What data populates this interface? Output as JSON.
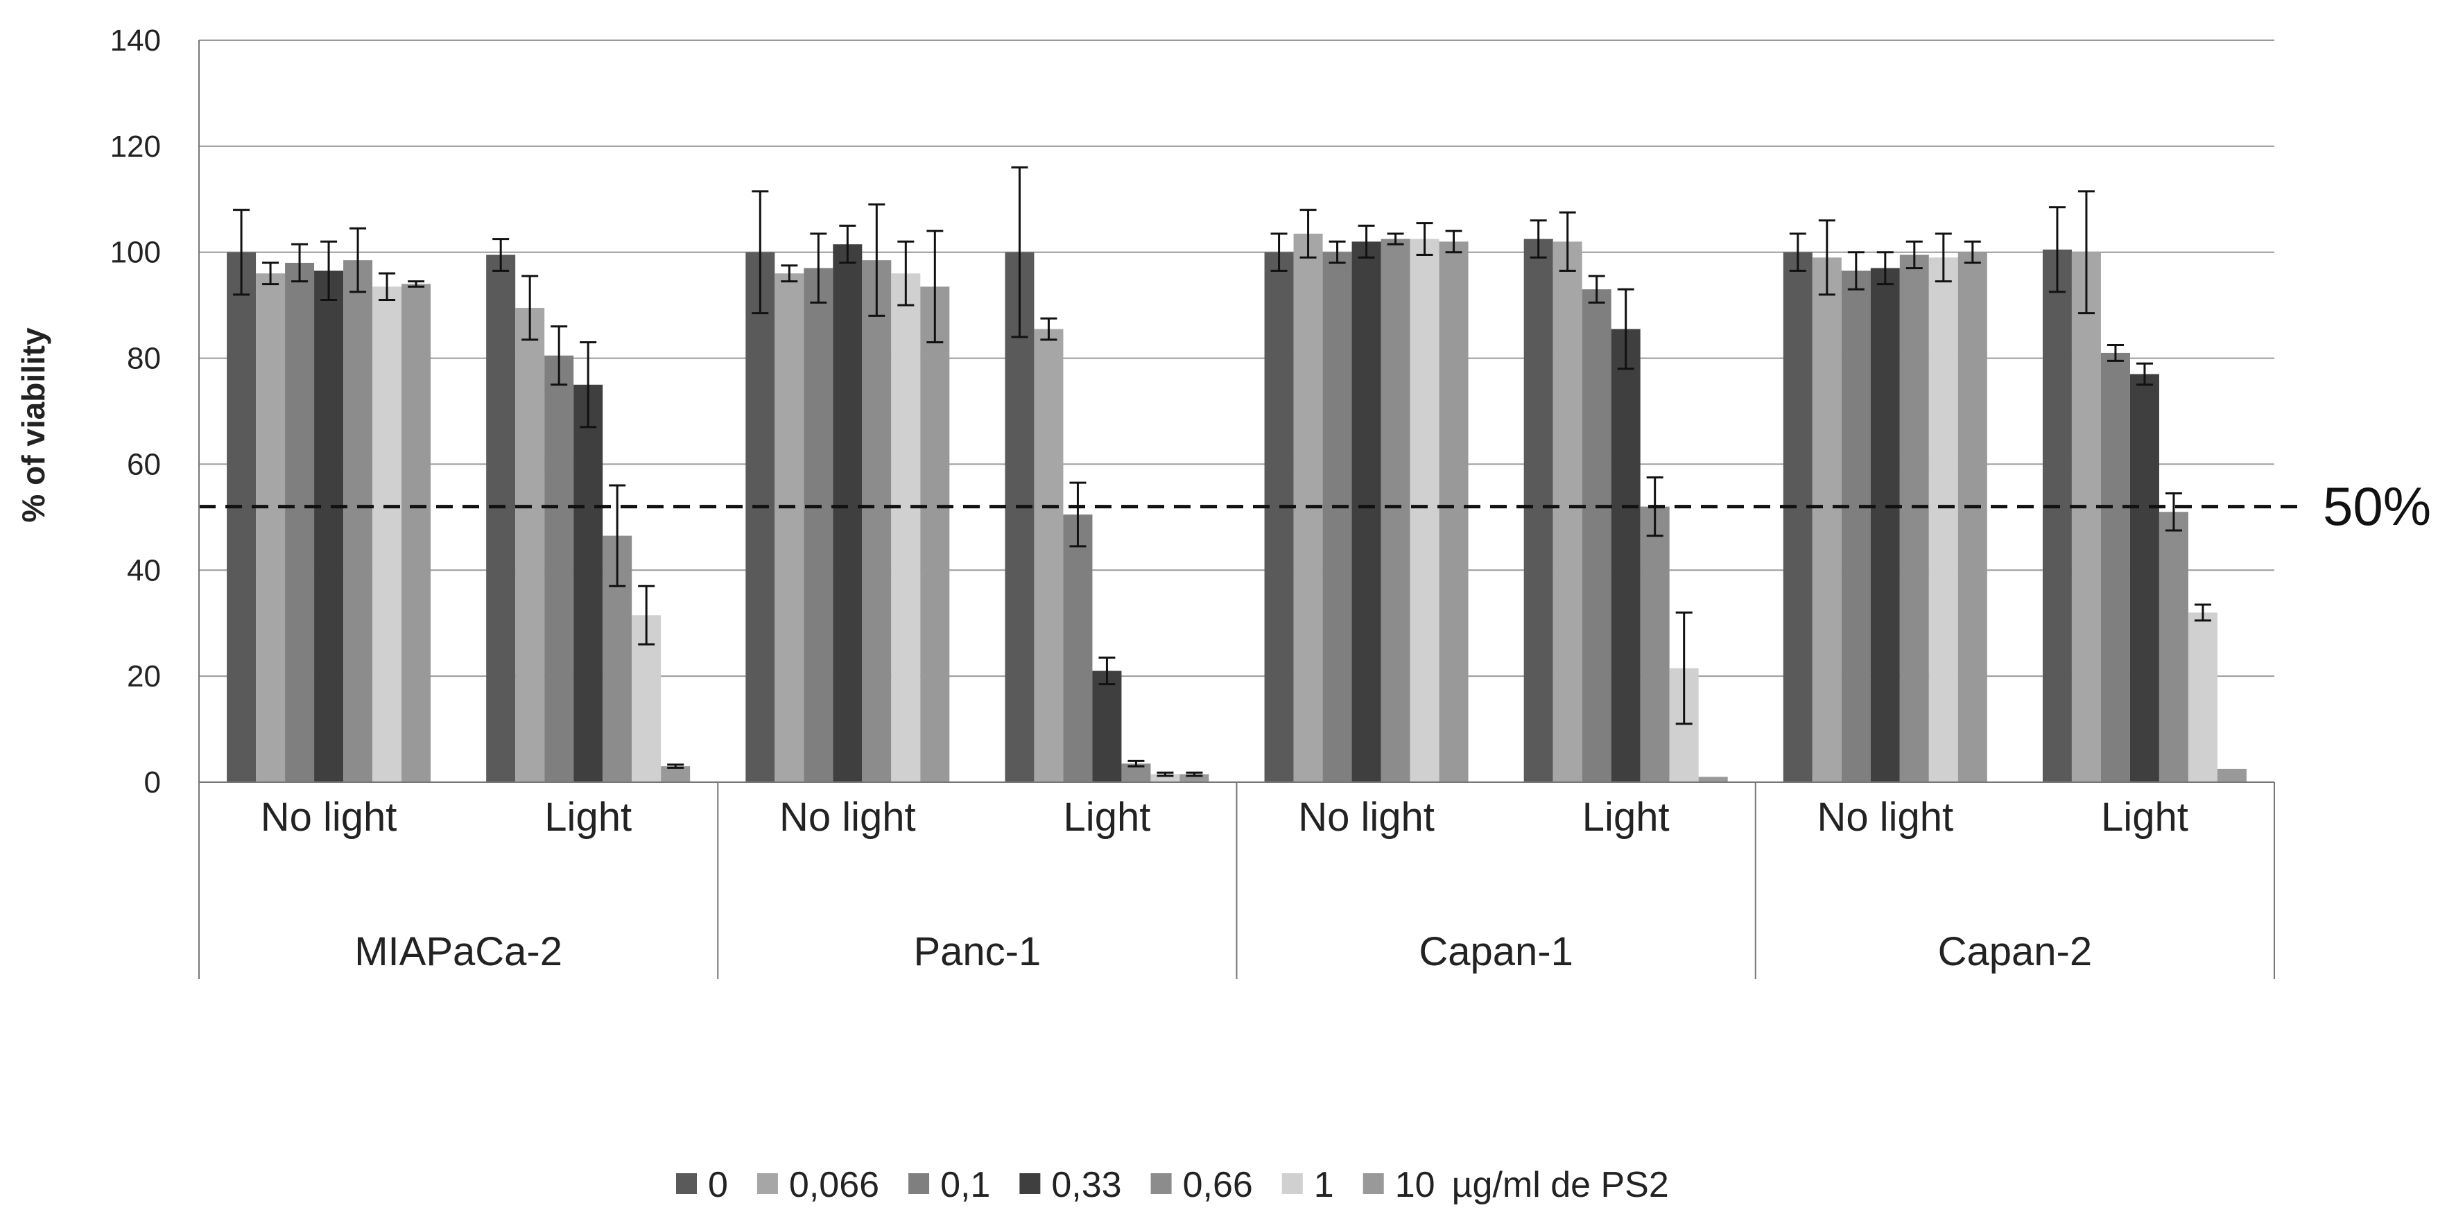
{
  "chart_data": {
    "type": "bar",
    "ylabel": "% of viability",
    "ylim": [
      0,
      140
    ],
    "yticks": [
      0,
      20,
      40,
      60,
      80,
      100,
      120,
      140
    ],
    "grid": true,
    "reference_line": {
      "value": 52,
      "label": "50%"
    },
    "cell_lines": [
      "MIAPaCa-2",
      "Panc-1",
      "Capan-1",
      "Capan-2"
    ],
    "conditions": [
      "No light",
      "Light"
    ],
    "series": [
      {
        "name": "0",
        "color": "#5a5a5a",
        "values": [
          100,
          99.5,
          100,
          100,
          100,
          102.5,
          100,
          100.5
        ],
        "errors": [
          8,
          3,
          11.5,
          16,
          3.5,
          3.5,
          3.5,
          8
        ]
      },
      {
        "name": "0,066",
        "color": "#a6a6a6",
        "values": [
          96,
          89.5,
          96,
          85.5,
          103.5,
          102,
          99,
          100
        ],
        "errors": [
          2,
          6,
          1.5,
          2,
          4.5,
          5.5,
          7,
          11.5
        ]
      },
      {
        "name": "0,1",
        "color": "#7f7f7f",
        "values": [
          98,
          80.5,
          97,
          50.5,
          100,
          93,
          96.5,
          81
        ],
        "errors": [
          3.5,
          5.5,
          6.5,
          6,
          2,
          2.5,
          3.5,
          1.5
        ]
      },
      {
        "name": "0,33",
        "color": "#3f3f3f",
        "values": [
          96.5,
          75,
          101.5,
          21,
          102,
          85.5,
          97,
          77
        ],
        "errors": [
          5.5,
          8,
          3.5,
          2.5,
          3,
          7.5,
          3,
          2
        ]
      },
      {
        "name": "0,66",
        "color": "#8c8c8c",
        "values": [
          98.5,
          46.5,
          98.5,
          3.5,
          102.5,
          52,
          99.5,
          51
        ],
        "errors": [
          6,
          9.5,
          10.5,
          0.5,
          1,
          5.5,
          2.5,
          3.5
        ]
      },
      {
        "name": "1",
        "color": "#d0d0d0",
        "values": [
          93.5,
          31.5,
          96,
          1.5,
          102.5,
          21.5,
          99,
          32
        ],
        "errors": [
          2.5,
          5.5,
          6,
          0.3,
          3,
          10.5,
          4.5,
          1.5
        ]
      },
      {
        "name": "10",
        "color": "#999999",
        "values": [
          94,
          3,
          93.5,
          1.5,
          102,
          1,
          100,
          2.5
        ],
        "errors": [
          0.5,
          0.3,
          10.5,
          0.3,
          2,
          0.2,
          2,
          0.2
        ]
      }
    ],
    "legend_unit": "µg/ml de PS2",
    "legend_position": "bottom"
  }
}
